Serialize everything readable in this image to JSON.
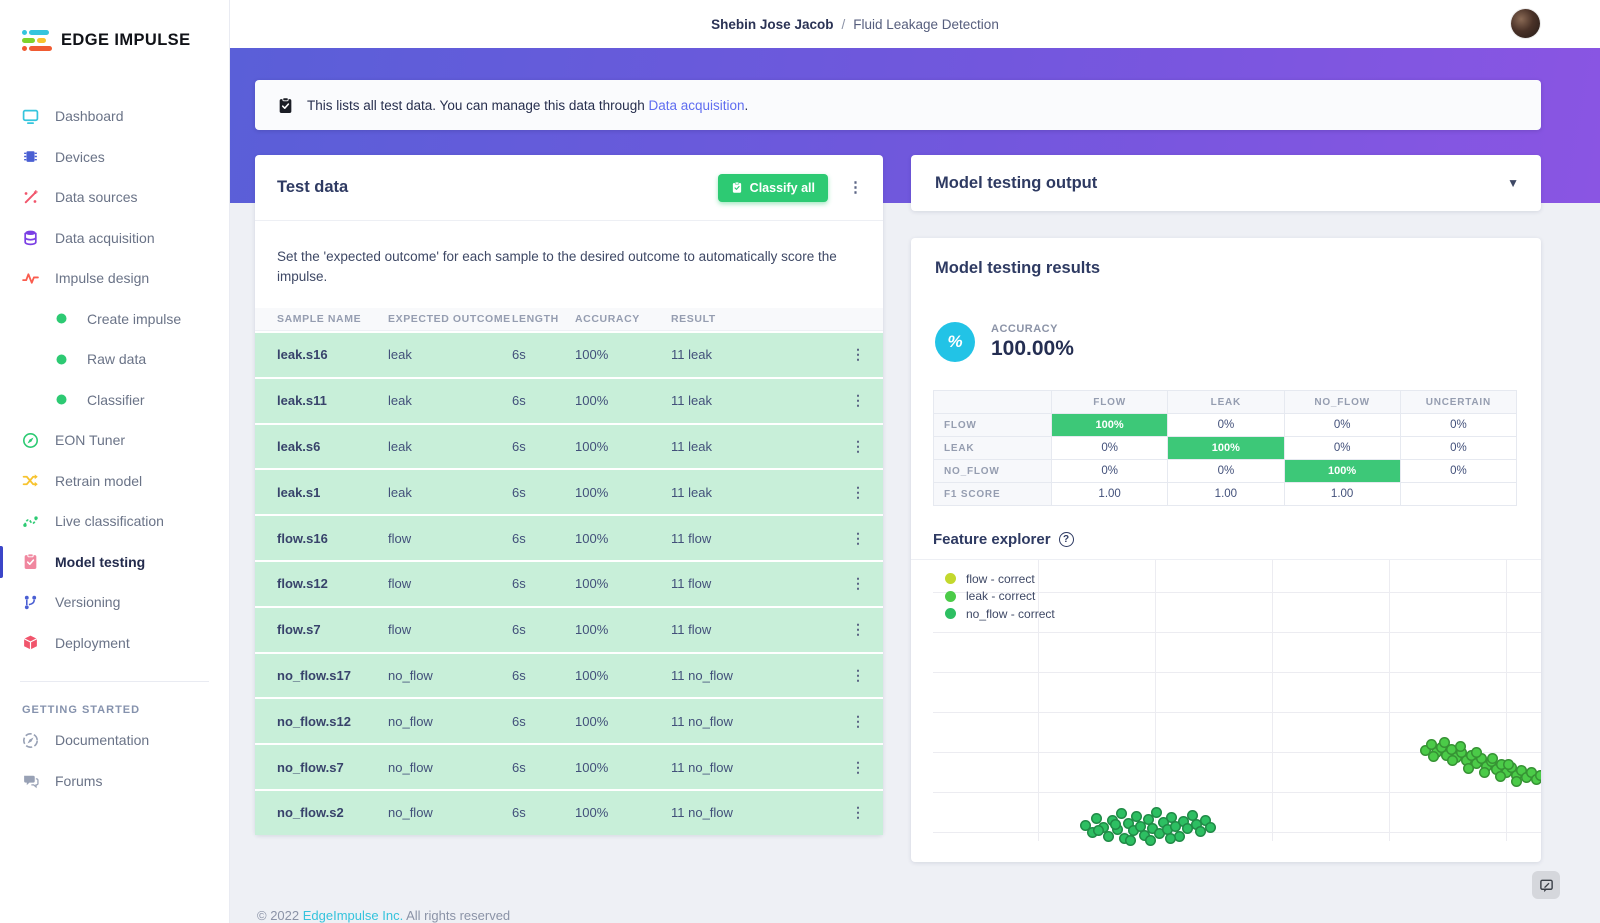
{
  "brand": {
    "name": "EDGE IMPULSE"
  },
  "header": {
    "breadcrumb": {
      "project": "Shebin Jose Jacob",
      "separator": "/",
      "page": "Fluid Leakage Detection"
    }
  },
  "sidebar": {
    "items": [
      {
        "label": "Dashboard",
        "icon": "dashboard-icon",
        "color": "#35c5dd",
        "type": "item",
        "active": false
      },
      {
        "label": "Devices",
        "icon": "devices-icon",
        "color": "#4a5fd3",
        "type": "item",
        "active": false
      },
      {
        "label": "Data sources",
        "icon": "data-sources-icon",
        "color": "#f1556c",
        "type": "item",
        "active": false
      },
      {
        "label": "Data acquisition",
        "icon": "data-acquisition-icon",
        "color": "#7b3fe4",
        "type": "item",
        "active": false
      },
      {
        "label": "Impulse design",
        "icon": "impulse-design-icon",
        "color": "#fa5c4e",
        "type": "item",
        "active": false
      },
      {
        "label": "Create impulse",
        "icon": "dot-icon",
        "color": "#2dca73",
        "type": "sub",
        "active": false
      },
      {
        "label": "Raw data",
        "icon": "dot-icon",
        "color": "#2dca73",
        "type": "sub",
        "active": false
      },
      {
        "label": "Classifier",
        "icon": "dot-icon",
        "color": "#2dca73",
        "type": "sub",
        "active": false
      },
      {
        "label": "EON Tuner",
        "icon": "eon-tuner-icon",
        "color": "#2dca73",
        "type": "item",
        "active": false
      },
      {
        "label": "Retrain model",
        "icon": "retrain-icon",
        "color": "#f7c32e",
        "type": "item",
        "active": false
      },
      {
        "label": "Live classification",
        "icon": "live-classification-icon",
        "color": "#2dca73",
        "type": "item",
        "active": false
      },
      {
        "label": "Model testing",
        "icon": "model-testing-icon",
        "color": "#f0879f",
        "type": "item",
        "active": true
      },
      {
        "label": "Versioning",
        "icon": "versioning-icon",
        "color": "#4a5fd3",
        "type": "item",
        "active": false
      },
      {
        "label": "Deployment",
        "icon": "deployment-icon",
        "color": "#f1556c",
        "type": "item",
        "active": false
      }
    ],
    "section_label": "GETTING STARTED",
    "secondary_items": [
      {
        "label": "Documentation",
        "icon": "documentation-icon",
        "color": "#98a1b5"
      },
      {
        "label": "Forums",
        "icon": "forums-icon",
        "color": "#98a1b5"
      }
    ]
  },
  "banner": {
    "text": "This lists all test data. You can manage this data through",
    "link_label": "Data acquisition",
    "suffix": "."
  },
  "test_data": {
    "title": "Test data",
    "classify_all_label": "Classify all",
    "description": "Set the 'expected outcome' for each sample to the desired outcome to automatically score the impulse.",
    "columns": [
      "SAMPLE NAME",
      "EXPECTED OUTCOME",
      "LENGTH",
      "ACCURACY",
      "RESULT"
    ],
    "rows": [
      {
        "name": "leak.s16",
        "expected": "leak",
        "length": "6s",
        "accuracy": "100%",
        "result": "11 leak"
      },
      {
        "name": "leak.s11",
        "expected": "leak",
        "length": "6s",
        "accuracy": "100%",
        "result": "11 leak"
      },
      {
        "name": "leak.s6",
        "expected": "leak",
        "length": "6s",
        "accuracy": "100%",
        "result": "11 leak"
      },
      {
        "name": "leak.s1",
        "expected": "leak",
        "length": "6s",
        "accuracy": "100%",
        "result": "11 leak"
      },
      {
        "name": "flow.s16",
        "expected": "flow",
        "length": "6s",
        "accuracy": "100%",
        "result": "11 flow"
      },
      {
        "name": "flow.s12",
        "expected": "flow",
        "length": "6s",
        "accuracy": "100%",
        "result": "11 flow"
      },
      {
        "name": "flow.s7",
        "expected": "flow",
        "length": "6s",
        "accuracy": "100%",
        "result": "11 flow"
      },
      {
        "name": "no_flow.s17",
        "expected": "no_flow",
        "length": "6s",
        "accuracy": "100%",
        "result": "11 no_flow"
      },
      {
        "name": "no_flow.s12",
        "expected": "no_flow",
        "length": "6s",
        "accuracy": "100%",
        "result": "11 no_flow"
      },
      {
        "name": "no_flow.s7",
        "expected": "no_flow",
        "length": "6s",
        "accuracy": "100%",
        "result": "11 no_flow"
      },
      {
        "name": "no_flow.s2",
        "expected": "no_flow",
        "length": "6s",
        "accuracy": "100%",
        "result": "11 no_flow"
      }
    ]
  },
  "model_testing_output": {
    "title": "Model testing output"
  },
  "results": {
    "title": "Model testing results",
    "accuracy_label": "ACCURACY",
    "accuracy_value": "100.00%",
    "matrix": {
      "corner": "",
      "col_headers": [
        "FLOW",
        "LEAK",
        "NO_FLOW",
        "UNCERTAIN"
      ],
      "rows": [
        {
          "label": "FLOW",
          "values": [
            "100%",
            "0%",
            "0%",
            "0%"
          ],
          "highlight": 0
        },
        {
          "label": "LEAK",
          "values": [
            "0%",
            "100%",
            "0%",
            "0%"
          ],
          "highlight": 1
        },
        {
          "label": "NO_FLOW",
          "values": [
            "0%",
            "0%",
            "100%",
            "0%"
          ],
          "highlight": 2
        },
        {
          "label": "F1 SCORE",
          "values": [
            "1.00",
            "1.00",
            "1.00",
            ""
          ],
          "highlight": -1
        }
      ]
    },
    "feature_explorer": {
      "title": "Feature explorer"
    }
  },
  "chart_data": {
    "type": "scatter",
    "title": "Feature explorer",
    "grid": true,
    "legend_position": "top-left",
    "series": [
      {
        "name": "flow - correct",
        "color": "#c3d82d",
        "points": []
      },
      {
        "name": "leak - correct",
        "color": "#4bcb48",
        "points": [
          [
            492,
            190
          ],
          [
            498,
            184
          ],
          [
            503,
            192
          ],
          [
            508,
            187
          ],
          [
            513,
            195
          ],
          [
            518,
            189
          ],
          [
            523,
            197
          ],
          [
            528,
            192
          ],
          [
            533,
            200
          ],
          [
            538,
            195
          ],
          [
            543,
            203
          ],
          [
            548,
            198
          ],
          [
            553,
            206
          ],
          [
            558,
            201
          ],
          [
            563,
            209
          ],
          [
            568,
            204
          ],
          [
            573,
            212
          ],
          [
            578,
            207
          ],
          [
            583,
            215
          ],
          [
            588,
            210
          ],
          [
            593,
            217
          ],
          [
            598,
            212
          ],
          [
            603,
            219
          ],
          [
            607,
            215
          ],
          [
            511,
            182
          ],
          [
            527,
            186
          ],
          [
            543,
            192
          ],
          [
            559,
            198
          ],
          [
            575,
            204
          ],
          [
            519,
            200
          ],
          [
            535,
            208
          ],
          [
            551,
            212
          ],
          [
            567,
            216
          ],
          [
            500,
            196
          ],
          [
            583,
            221
          ]
        ]
      },
      {
        "name": "no_flow - correct",
        "color": "#2dbf62",
        "points": [
          [
            152,
            265
          ],
          [
            159,
            272
          ],
          [
            163,
            258
          ],
          [
            170,
            267
          ],
          [
            175,
            276
          ],
          [
            179,
            260
          ],
          [
            184,
            269
          ],
          [
            188,
            253
          ],
          [
            191,
            278
          ],
          [
            195,
            263
          ],
          [
            200,
            270
          ],
          [
            203,
            256
          ],
          [
            207,
            266
          ],
          [
            211,
            275
          ],
          [
            215,
            259
          ],
          [
            219,
            268
          ],
          [
            223,
            252
          ],
          [
            226,
            273
          ],
          [
            230,
            262
          ],
          [
            234,
            269
          ],
          [
            238,
            257
          ],
          [
            242,
            266
          ],
          [
            246,
            276
          ],
          [
            250,
            261
          ],
          [
            254,
            268
          ],
          [
            259,
            255
          ],
          [
            263,
            264
          ],
          [
            267,
            271
          ],
          [
            272,
            260
          ],
          [
            277,
            267
          ],
          [
            217,
            280
          ],
          [
            197,
            280
          ],
          [
            182,
            264
          ],
          [
            237,
            278
          ],
          [
            165,
            270
          ]
        ]
      }
    ]
  },
  "footer": {
    "copyright_prefix": "© 2022",
    "company": "EdgeImpulse Inc.",
    "copyright_suffix": "All rights reserved"
  },
  "colors": {
    "accent_green": "#2dca73",
    "matrix_green": "#3dc878",
    "row_green": "#c8efd9",
    "hero_gradient_start": "#5a5fd8",
    "hero_gradient_end": "#8a55e3",
    "link_blue": "#5f6df0",
    "badge_cyan": "#22c3e6",
    "active_nav_bar": "#3b45c8"
  }
}
